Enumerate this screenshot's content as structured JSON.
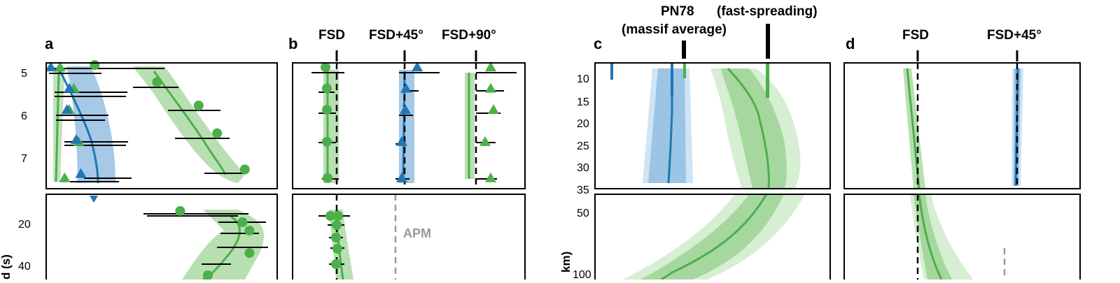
{
  "colors": {
    "green": "#4daf4a",
    "green_light": "#a6d79f",
    "green_lighter": "#d6eed2",
    "blue": "#1f77b4",
    "blue_light": "#8fbce0",
    "blue_lighter": "#cfe4f4",
    "grey": "#999999",
    "black": "#000000"
  },
  "panels": {
    "a": {
      "label": "a",
      "top_ticks": [
        "5",
        "6",
        "7"
      ],
      "bottom_ticks": [
        "20",
        "40"
      ],
      "ylabel": "d (s)"
    },
    "b": {
      "label": "b",
      "headers": [
        "FSD",
        "FSD+45°",
        "FSD+90°"
      ],
      "annotation": "APM"
    },
    "c": {
      "label": "c",
      "header_pn78_line1": "PN78",
      "header_pn78_line2": "(massif average)",
      "header_fast": "(fast-spreading)",
      "top_ticks": [
        "10",
        "15",
        "20",
        "25",
        "30",
        "35"
      ],
      "bottom_ticks": [
        "50",
        "100"
      ],
      "ylabel": "km)"
    },
    "d": {
      "label": "d",
      "headers": [
        "FSD",
        "FSD+45°"
      ]
    }
  },
  "chart_data": [
    {
      "panel": "a-top",
      "type": "scatter",
      "ylabel": "",
      "ylim": [
        4.9,
        7.85
      ],
      "y_ticks": [
        5,
        6,
        7
      ],
      "series": [
        {
          "color": "green",
          "marker": "circle",
          "points": [
            [
              2.1,
              4.95
            ],
            [
              4.8,
              5.35
            ],
            [
              6.6,
              5.9
            ],
            [
              7.4,
              6.55
            ],
            [
              8.6,
              7.4
            ]
          ]
        },
        {
          "color": "green",
          "marker": "triangle",
          "points": [
            [
              0.6,
              5.0
            ],
            [
              1.2,
              5.5
            ],
            [
              1.0,
              6.0
            ],
            [
              1.4,
              6.75
            ],
            [
              0.8,
              7.6
            ]
          ]
        },
        {
          "color": "blue",
          "marker": "triangle",
          "points": [
            [
              0.2,
              5.0
            ],
            [
              1.0,
              5.5
            ],
            [
              0.9,
              6.0
            ],
            [
              1.3,
              6.7
            ],
            [
              1.5,
              7.5
            ]
          ]
        }
      ]
    },
    {
      "panel": "a-bottom",
      "type": "scatter",
      "ylabel": "d (s)",
      "y_ticks": [
        20,
        40
      ],
      "series": [
        {
          "color": "green",
          "marker": "circle",
          "points": [
            [
              5.8,
              16
            ],
            [
              8.5,
              20
            ],
            [
              8.8,
              23
            ],
            [
              8.8,
              31
            ],
            [
              7.0,
              39
            ]
          ]
        }
      ]
    },
    {
      "panel": "b-top",
      "type": "scatter",
      "x_ticks": [
        "FSD",
        "FSD+45°",
        "FSD+90°"
      ],
      "series": [
        {
          "color": "green",
          "marker": "circle",
          "name": ""
        },
        {
          "color": "blue",
          "marker": "triangle",
          "name": ""
        },
        {
          "color": "green",
          "marker": "triangle",
          "name": ""
        }
      ]
    },
    {
      "panel": "c-top",
      "type": "line",
      "ylabel": "",
      "ylim": [
        6,
        35
      ],
      "y_ticks": [
        10,
        15,
        20,
        25,
        30,
        35
      ],
      "series": [
        {
          "color": "blue",
          "points": [
            [
              -0.5,
              7
            ],
            [
              -0.52,
              15
            ],
            [
              -0.55,
              25
            ],
            [
              -0.58,
              33
            ]
          ]
        },
        {
          "color": "green",
          "points": [
            [
              0.1,
              7
            ],
            [
              0.45,
              15
            ],
            [
              0.62,
              25
            ],
            [
              0.66,
              32
            ],
            [
              0.55,
              35
            ]
          ]
        }
      ]
    },
    {
      "panel": "c-bottom",
      "type": "line",
      "y_ticks": [
        50,
        100
      ],
      "series": [
        {
          "color": "green",
          "points": [
            [
              0.55,
              36
            ],
            [
              0.1,
              60
            ],
            [
              -0.6,
              85
            ],
            [
              -1.0,
              100
            ]
          ]
        }
      ]
    }
  ]
}
